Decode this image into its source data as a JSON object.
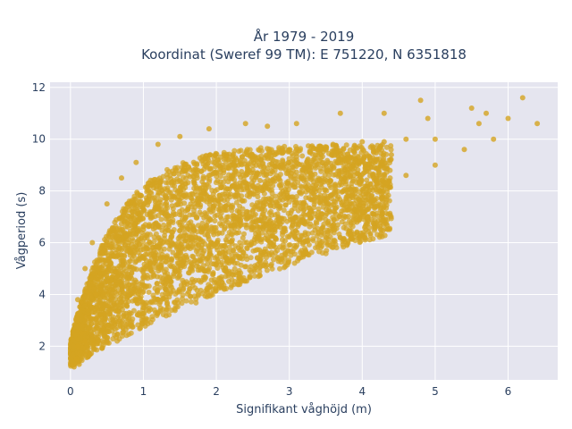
{
  "chart_data": {
    "type": "scatter",
    "title_lines": [
      "År 1979 - 2019",
      "Koordinat (Sweref 99 TM): E 751220, N 6351818"
    ],
    "xlabel": "Signifikant våghöjd (m)",
    "ylabel": "Vågperiod (s)",
    "xlim": [
      -0.28,
      6.68
    ],
    "ylim": [
      0.7,
      12.2
    ],
    "x_ticks": [
      0,
      1,
      2,
      3,
      4,
      5,
      6
    ],
    "y_ticks": [
      2,
      4,
      6,
      8,
      10,
      12
    ],
    "grid": true,
    "legend": "none",
    "marker_color": "#d4a421",
    "background_color": "#e5e5ef",
    "series": [
      {
        "points": [
          [
            0.05,
            1.2
          ],
          [
            0.08,
            1.5
          ],
          [
            0.1,
            2.0
          ],
          [
            0.12,
            1.3
          ],
          [
            0.15,
            2.5
          ],
          [
            0.2,
            2.2
          ],
          [
            0.25,
            3.0
          ],
          [
            0.3,
            3.5
          ],
          [
            0.35,
            4.0
          ],
          [
            0.4,
            3.2
          ],
          [
            0.5,
            4.5
          ],
          [
            0.6,
            5.0
          ],
          [
            0.7,
            5.5
          ],
          [
            0.8,
            6.0
          ],
          [
            0.9,
            6.3
          ],
          [
            1.0,
            6.5
          ],
          [
            1.1,
            7.0
          ],
          [
            1.2,
            7.3
          ],
          [
            1.3,
            7.5
          ],
          [
            1.4,
            7.8
          ],
          [
            1.5,
            8.0
          ],
          [
            1.7,
            8.3
          ],
          [
            1.9,
            8.6
          ],
          [
            2.1,
            8.8
          ],
          [
            2.3,
            9.0
          ],
          [
            2.5,
            9.2
          ],
          [
            2.8,
            9.4
          ],
          [
            3.0,
            9.6
          ],
          [
            3.3,
            9.7
          ],
          [
            3.6,
            9.8
          ],
          [
            4.0,
            9.9
          ],
          [
            4.3,
            9.9
          ],
          [
            4.6,
            10.0
          ],
          [
            5.0,
            10.0
          ],
          [
            0.9,
            3.8
          ],
          [
            1.3,
            4.4
          ],
          [
            1.8,
            5.0
          ],
          [
            2.3,
            5.8
          ],
          [
            2.8,
            6.5
          ],
          [
            3.3,
            7.2
          ],
          [
            3.8,
            7.8
          ],
          [
            4.2,
            8.3
          ],
          [
            4.6,
            8.6
          ],
          [
            5.0,
            9.0
          ],
          [
            5.4,
            9.6
          ],
          [
            5.8,
            10.0
          ],
          [
            6.0,
            10.8
          ],
          [
            6.2,
            11.6
          ],
          [
            6.4,
            10.6
          ],
          [
            5.7,
            11.0
          ],
          [
            5.6,
            10.6
          ],
          [
            5.5,
            11.2
          ],
          [
            4.9,
            10.8
          ],
          [
            4.8,
            11.5
          ],
          [
            4.3,
            11.0
          ],
          [
            3.7,
            11.0
          ],
          [
            3.1,
            10.6
          ],
          [
            2.7,
            10.5
          ],
          [
            2.4,
            10.6
          ],
          [
            1.9,
            10.4
          ],
          [
            1.5,
            10.1
          ],
          [
            1.2,
            9.8
          ],
          [
            0.9,
            9.1
          ],
          [
            0.7,
            8.5
          ],
          [
            0.5,
            7.5
          ],
          [
            0.3,
            6.0
          ],
          [
            0.2,
            5.0
          ],
          [
            0.1,
            3.8
          ],
          [
            1.6,
            4.4
          ],
          [
            2.0,
            5.2
          ],
          [
            2.2,
            7.4
          ],
          [
            2.6,
            8.4
          ],
          [
            3.5,
            8.8
          ],
          [
            4.4,
            9.4
          ],
          [
            1.0,
            5.4
          ],
          [
            1.4,
            6.4
          ],
          [
            0.6,
            4.2
          ],
          [
            1.2,
            3.8
          ],
          [
            2.6,
            6.6
          ],
          [
            3.8,
            9.2
          ]
        ]
      }
    ]
  }
}
